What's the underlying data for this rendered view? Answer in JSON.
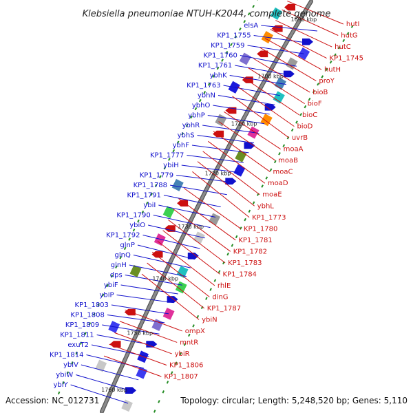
{
  "title": "Klebsiella pneumoniae NTUH-K2044, complete genome",
  "footer": {
    "accession": "Accession: NC_012731",
    "topology": "Topology: circular; Length: 5,248,520 bp; Genes: 5,110"
  },
  "colors": {
    "forward": "#1010cc",
    "reverse": "#cc1010",
    "backbone": "#8a8a8a",
    "tick": "#228b22"
  },
  "kbp_marks": [
    {
      "label": "1690 kbp",
      "t": 0.035
    },
    {
      "label": "1700 kbp",
      "t": 0.195
    },
    {
      "label": "1710 kbp",
      "t": 0.322
    },
    {
      "label": "1720 kbp",
      "t": 0.448
    },
    {
      "label": "1730 kbp",
      "t": 0.578
    },
    {
      "label": "1740 kbp",
      "t": 0.7
    },
    {
      "label": "1750 kbp",
      "t": 0.822
    },
    {
      "label": "1760 kbp",
      "t": 0.945
    }
  ],
  "forward_labels": [
    {
      "name": "elsA",
      "t": 0.055
    },
    {
      "name": "KP1_1755",
      "t": 0.09
    },
    {
      "name": "KP1_1759",
      "t": 0.12
    },
    {
      "name": "KP1_1760",
      "t": 0.155
    },
    {
      "name": "KP1_1761",
      "t": 0.18
    },
    {
      "name": "ybhK",
      "t": 0.205
    },
    {
      "name": "KP1_1763",
      "t": 0.235
    },
    {
      "name": "ybhN",
      "t": 0.26
    },
    {
      "name": "ybhO",
      "t": 0.285
    },
    {
      "name": "ybhP",
      "t": 0.31
    },
    {
      "name": "ybhR",
      "t": 0.335
    },
    {
      "name": "ybhS",
      "t": 0.36
    },
    {
      "name": "ybhF",
      "t": 0.385
    },
    {
      "name": "KP1_1777",
      "t": 0.41
    },
    {
      "name": "ybiH",
      "t": 0.435
    },
    {
      "name": "KP1_1779",
      "t": 0.46
    },
    {
      "name": "KP1_1788",
      "t": 0.49
    },
    {
      "name": "KP1_1791",
      "t": 0.52
    },
    {
      "name": "ybiI",
      "t": 0.545
    },
    {
      "name": "KP1_1790",
      "t": 0.57
    },
    {
      "name": "ybiO",
      "t": 0.595
    },
    {
      "name": "KP1_1792",
      "t": 0.62
    },
    {
      "name": "glnP",
      "t": 0.645
    },
    {
      "name": "glnQ",
      "t": 0.665
    },
    {
      "name": "glnH",
      "t": 0.685
    },
    {
      "name": "dps",
      "t": 0.705
    },
    {
      "name": "ybiF",
      "t": 0.725
    },
    {
      "name": "ybiP",
      "t": 0.745
    },
    {
      "name": "KP1_1803",
      "t": 0.77
    },
    {
      "name": "KP1_1808",
      "t": 0.79
    },
    {
      "name": "KP1_1809",
      "t": 0.815
    },
    {
      "name": "KP1_1811",
      "t": 0.84
    },
    {
      "name": "exuT2",
      "t": 0.865
    },
    {
      "name": "KP1_1814",
      "t": 0.89
    },
    {
      "name": "ybiV",
      "t": 0.915
    },
    {
      "name": "ybiW",
      "t": 0.94
    },
    {
      "name": "ybiY",
      "t": 0.965
    }
  ],
  "reverse_labels": [
    {
      "name": "hutI",
      "t": 0.03
    },
    {
      "name": "hutG",
      "t": 0.055
    },
    {
      "name": "hutC",
      "t": 0.085
    },
    {
      "name": "KP1_1745",
      "t": 0.11
    },
    {
      "name": "hutH",
      "t": 0.135
    },
    {
      "name": "proY",
      "t": 0.16
    },
    {
      "name": "bioB",
      "t": 0.19
    },
    {
      "name": "bioF",
      "t": 0.215
    },
    {
      "name": "bioC",
      "t": 0.24
    },
    {
      "name": "bioD",
      "t": 0.265
    },
    {
      "name": "uvrB",
      "t": 0.29
    },
    {
      "name": "moaA",
      "t": 0.33
    },
    {
      "name": "moaB",
      "t": 0.355
    },
    {
      "name": "moaC",
      "t": 0.38
    },
    {
      "name": "moaD",
      "t": 0.405
    },
    {
      "name": "moaE",
      "t": 0.43
    },
    {
      "name": "ybhL",
      "t": 0.455
    },
    {
      "name": "KP1_1773",
      "t": 0.48
    },
    {
      "name": "KP1_1780",
      "t": 0.52
    },
    {
      "name": "KP1_1781",
      "t": 0.545
    },
    {
      "name": "KP1_1782",
      "t": 0.57
    },
    {
      "name": "KP1_1783",
      "t": 0.595
    },
    {
      "name": "KP1_1784",
      "t": 0.62
    },
    {
      "name": "rhlE",
      "t": 0.645
    },
    {
      "name": "dinG",
      "t": 0.67
    },
    {
      "name": "KP1_1787",
      "t": 0.695
    },
    {
      "name": "ybiN",
      "t": 0.72
    },
    {
      "name": "ompX",
      "t": 0.8
    },
    {
      "name": "mntR",
      "t": 0.825
    },
    {
      "name": "ybiR",
      "t": 0.85
    },
    {
      "name": "KP1_1806",
      "t": 0.875
    },
    {
      "name": "KP1_1807",
      "t": 0.9
    }
  ]
}
